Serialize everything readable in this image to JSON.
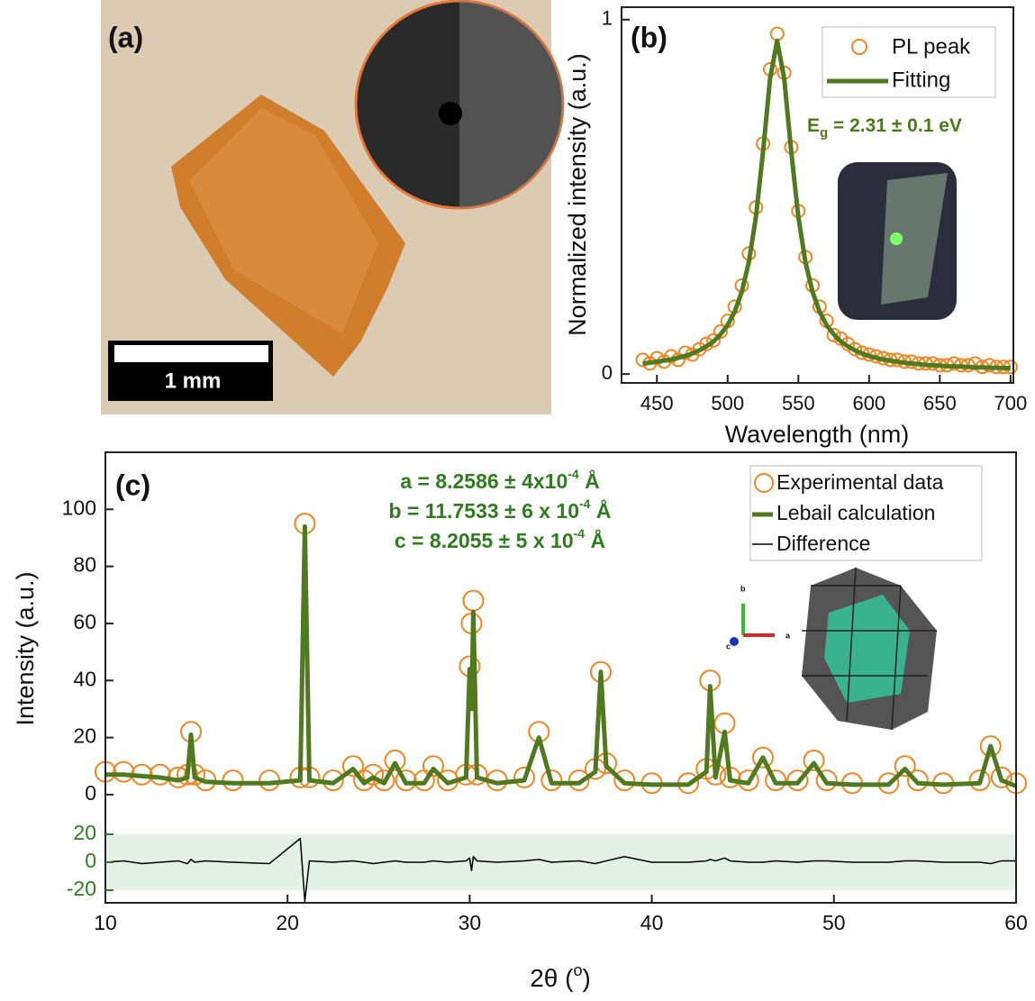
{
  "panel_a": {
    "label": "(a)",
    "scale_bar": "1 mm"
  },
  "chart_data": [
    {
      "type": "line",
      "label": "(b)",
      "x_label": "Wavelength (nm)",
      "y_label": "Normalized intensity (a.u.)",
      "annotation": [
        "E",
        "g",
        " = 2.31 ± 0.1 eV"
      ],
      "annotation_color": "#4a7a1a",
      "x": [
        440,
        445,
        450,
        455,
        460,
        465,
        470,
        475,
        480,
        485,
        490,
        495,
        500,
        505,
        510,
        515,
        520,
        525,
        530,
        535,
        540,
        545,
        550,
        555,
        560,
        565,
        570,
        575,
        580,
        585,
        590,
        595,
        600,
        605,
        610,
        615,
        620,
        625,
        630,
        635,
        640,
        645,
        650,
        655,
        660,
        665,
        670,
        675,
        680,
        685,
        690,
        695,
        700
      ],
      "series": [
        {
          "name": "PL peak",
          "color": "#f5841f",
          "mode": "markers",
          "values": [
            0.04,
            0.03,
            0.045,
            0.035,
            0.05,
            0.04,
            0.06,
            0.055,
            0.07,
            0.085,
            0.095,
            0.12,
            0.15,
            0.19,
            0.25,
            0.34,
            0.47,
            0.65,
            0.86,
            0.96,
            0.85,
            0.64,
            0.46,
            0.33,
            0.25,
            0.19,
            0.15,
            0.11,
            0.1,
            0.085,
            0.07,
            0.06,
            0.055,
            0.05,
            0.045,
            0.04,
            0.04,
            0.035,
            0.035,
            0.03,
            0.03,
            0.03,
            0.025,
            0.025,
            0.03,
            0.025,
            0.025,
            0.03,
            0.02,
            0.025,
            0.02,
            0.02,
            0.02
          ]
        },
        {
          "name": "Fitting",
          "color": "#4f7a1f",
          "mode": "line",
          "values": [
            0.03,
            0.032,
            0.035,
            0.038,
            0.041,
            0.046,
            0.051,
            0.058,
            0.067,
            0.078,
            0.092,
            0.112,
            0.138,
            0.176,
            0.232,
            0.316,
            0.443,
            0.626,
            0.834,
            0.94,
            0.834,
            0.626,
            0.443,
            0.316,
            0.232,
            0.176,
            0.138,
            0.112,
            0.092,
            0.078,
            0.067,
            0.058,
            0.051,
            0.046,
            0.041,
            0.038,
            0.035,
            0.032,
            0.03,
            0.028,
            0.026,
            0.025,
            0.024,
            0.022,
            0.022,
            0.021,
            0.02,
            0.019,
            0.019,
            0.018,
            0.018,
            0.017,
            0.017
          ]
        }
      ],
      "xlim": [
        425,
        702
      ],
      "xticks": [
        450,
        500,
        550,
        600,
        650,
        700
      ],
      "ylim": [
        -0.025,
        1.035
      ],
      "yticks": [
        0,
        1
      ],
      "legend": "upper right"
    },
    {
      "type": "line",
      "label": "(c)",
      "x_label": [
        "2θ (",
        "o",
        ")"
      ],
      "y_label": "Intensity (a.u.)",
      "annotation": [
        [
          "a = 8.2586 ± 4x10",
          "-4",
          " Å"
        ],
        [
          "b = 11.7533 ± 6 x 10",
          "-4",
          " Å"
        ],
        [
          "c = 8.2055 ± 5 x 10",
          "-4",
          " Å"
        ]
      ],
      "annotation_color": "#2f7d1f",
      "structure_axes": [
        "b",
        "a",
        "c"
      ],
      "x": [
        10,
        11,
        12,
        13,
        14,
        14.5,
        14.7,
        14.9,
        15.5,
        17,
        19,
        20.7,
        20.95,
        21.2,
        22.5,
        23.6,
        24.2,
        24.7,
        25.3,
        25.9,
        26.5,
        27.5,
        28.0,
        28.8,
        29.8,
        30.0,
        30.1,
        30.2,
        30.4,
        31.5,
        33.0,
        33.8,
        34.5,
        36,
        36.9,
        37.2,
        37.5,
        38.5,
        40,
        42,
        43.0,
        43.2,
        43.5,
        44.0,
        44.3,
        45.3,
        46.1,
        46.8,
        48,
        48.9,
        49.6,
        51,
        53,
        53.9,
        54.6,
        56,
        58,
        58.6,
        59.2,
        60
      ],
      "series": [
        {
          "name": "Experimental data",
          "color": "#f5841f",
          "mode": "markers",
          "values": [
            8,
            8,
            7,
            7,
            6,
            7,
            22,
            7,
            5,
            5,
            5,
            6,
            95,
            6,
            5,
            10,
            5,
            7,
            5,
            12,
            5,
            5,
            10,
            5,
            7,
            45,
            60,
            68,
            7,
            5,
            6,
            22,
            5,
            5,
            9,
            43,
            11,
            5,
            4,
            4,
            9,
            40,
            7,
            25,
            6,
            5,
            13,
            5,
            5,
            12,
            5,
            4,
            4,
            10,
            5,
            4,
            5,
            17,
            6,
            4
          ]
        },
        {
          "name": "Lebail calculation",
          "color": "#4f7a1f",
          "mode": "line",
          "values": [
            7,
            7,
            6.5,
            6,
            5,
            6,
            21,
            6,
            4.5,
            4,
            4,
            5,
            94,
            5,
            4,
            9,
            4,
            6,
            4,
            11,
            4,
            4,
            9,
            4,
            6,
            44,
            30,
            64,
            6,
            4,
            5,
            20,
            4,
            4,
            8,
            43,
            10,
            4,
            3.5,
            3.5,
            8,
            38,
            6,
            22,
            5,
            4,
            13,
            4,
            4,
            11,
            4,
            3.5,
            3.5,
            9,
            4,
            3.5,
            4,
            17,
            5,
            3
          ]
        },
        {
          "name": "Difference",
          "color": "#000000",
          "mode": "line",
          "axis": "y2",
          "values": [
            0,
            1,
            -1,
            0,
            1,
            -1,
            2,
            0,
            1,
            0,
            -1,
            17,
            -28,
            1,
            0,
            1,
            0,
            -1,
            0,
            1,
            0,
            0,
            1,
            0,
            1,
            3,
            -6,
            4,
            1,
            0,
            1,
            2,
            0,
            1,
            -1,
            0,
            1,
            4,
            0,
            0,
            1,
            2,
            1,
            3,
            1,
            0,
            0,
            1,
            0,
            1,
            1,
            0,
            0,
            1,
            1,
            0,
            0,
            -1,
            1,
            1
          ]
        }
      ],
      "xlim": [
        10,
        60
      ],
      "xticks": [
        10,
        20,
        30,
        40,
        50,
        60
      ],
      "ylim": [
        -9.5,
        120
      ],
      "yticks": [
        0,
        20,
        40,
        60,
        80,
        100
      ],
      "y2lim": [
        -29,
        29
      ],
      "y2ticks": [
        -20,
        0,
        20
      ],
      "y2_color": "#2f7d1f",
      "legend": "upper right"
    }
  ]
}
